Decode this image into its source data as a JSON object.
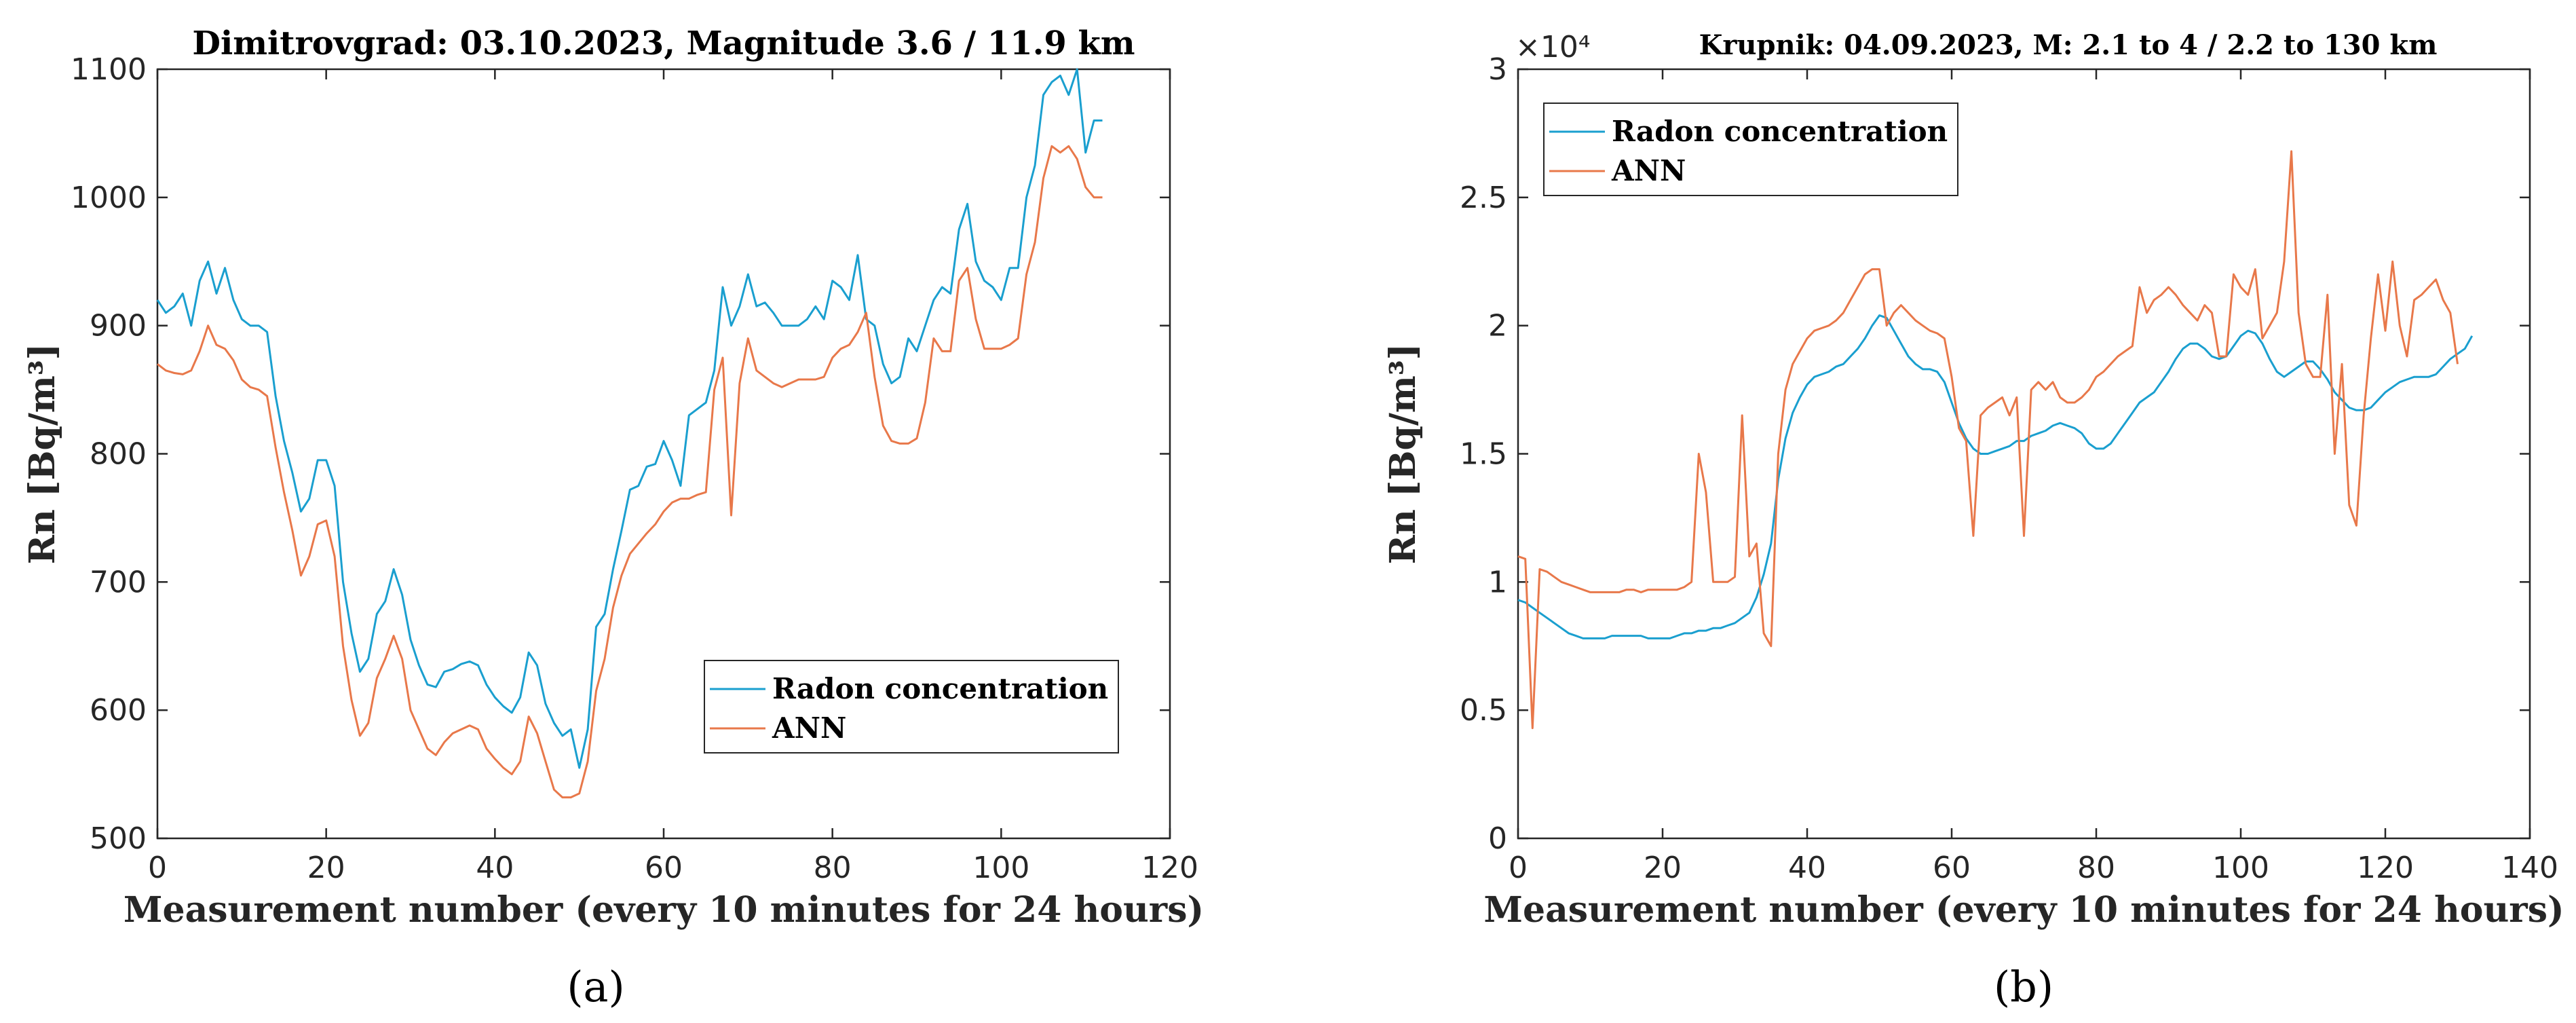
{
  "chart_data": [
    {
      "type": "line",
      "panel_label": "(a)",
      "title": "Dimitrovgrad: 03.10.2023, Magnitude 3.6 / 11.9 km",
      "xlabel": "Measurement number (every 10 minutes for 24 hours)",
      "ylabel": "Rn [Bq/m³]",
      "xlim": [
        0,
        120
      ],
      "ylim": [
        500,
        1100
      ],
      "xticks": [
        0,
        20,
        40,
        60,
        80,
        100,
        120
      ],
      "yticks": [
        500,
        600,
        700,
        800,
        900,
        1000,
        1100
      ],
      "tick_labels_x": [
        "0",
        "20",
        "40",
        "60",
        "80",
        "100",
        "120"
      ],
      "tick_labels_y": [
        "500",
        "600",
        "700",
        "800",
        "900",
        "1000",
        "1100"
      ],
      "legend": {
        "placement": "bottom-right",
        "entries": [
          "Radon concentration",
          "ANN"
        ]
      },
      "grid": false,
      "series": [
        {
          "name": "Radon concentration",
          "color": "#1a9fcf",
          "y": [
            920,
            910,
            915,
            925,
            900,
            935,
            950,
            925,
            945,
            920,
            905,
            900,
            900,
            895,
            845,
            810,
            785,
            755,
            765,
            795,
            795,
            775,
            700,
            660,
            630,
            640,
            675,
            685,
            710,
            690,
            655,
            635,
            620,
            618,
            630,
            632,
            636,
            638,
            635,
            620,
            610,
            603,
            598,
            610,
            645,
            635,
            605,
            590,
            580,
            585,
            555,
            585,
            665,
            675,
            710,
            740,
            772,
            775,
            790,
            792,
            810,
            795,
            775,
            830,
            835,
            840,
            865,
            930,
            900,
            915,
            940,
            915,
            918,
            910,
            900,
            900,
            900,
            905,
            915,
            905,
            935,
            930,
            920,
            955,
            905,
            900,
            870,
            855,
            860,
            890,
            880,
            900,
            920,
            930,
            925,
            975,
            995,
            950,
            935,
            930,
            920,
            945,
            945,
            1000,
            1025,
            1080,
            1090,
            1095,
            1080,
            1100,
            1035,
            1060,
            1060
          ]
        },
        {
          "name": "ANN",
          "color": "#e8784a",
          "y": [
            870,
            865,
            863,
            862,
            865,
            880,
            900,
            885,
            882,
            873,
            858,
            852,
            850,
            845,
            805,
            770,
            740,
            705,
            720,
            745,
            748,
            720,
            650,
            608,
            580,
            590,
            625,
            640,
            658,
            640,
            600,
            585,
            570,
            565,
            575,
            582,
            585,
            588,
            585,
            570,
            562,
            555,
            550,
            560,
            595,
            582,
            560,
            538,
            532,
            532,
            535,
            560,
            615,
            640,
            680,
            705,
            722,
            730,
            738,
            745,
            755,
            762,
            765,
            765,
            768,
            770,
            850,
            875,
            752,
            855,
            890,
            865,
            860,
            855,
            852,
            855,
            858,
            858,
            858,
            860,
            875,
            882,
            885,
            895,
            910,
            860,
            822,
            810,
            808,
            808,
            812,
            840,
            890,
            880,
            880,
            935,
            945,
            905,
            882,
            882,
            882,
            885,
            890,
            940,
            965,
            1015,
            1040,
            1035,
            1040,
            1030,
            1008,
            1000,
            1000
          ]
        }
      ]
    },
    {
      "type": "line",
      "panel_label": "(b)",
      "title": "Krupnik: 04.09.2023, M: 2.1 to 4 / 2.2 to 130 km",
      "xlabel": "Measurement number (every 10 minutes for 24 hours)",
      "ylabel": "Rn [Bq/m³]",
      "y_exponent": "×10⁴",
      "xlim": [
        0,
        140
      ],
      "ylim": [
        0,
        3
      ],
      "xticks": [
        0,
        20,
        40,
        60,
        80,
        100,
        120,
        140
      ],
      "yticks": [
        0,
        0.5,
        1,
        1.5,
        2,
        2.5,
        3
      ],
      "tick_labels_x": [
        "0",
        "20",
        "40",
        "60",
        "80",
        "100",
        "120",
        "140"
      ],
      "tick_labels_y": [
        "0",
        "0.5",
        "1",
        "1.5",
        "2",
        "2.5",
        "3"
      ],
      "legend": {
        "placement": "top-left",
        "entries": [
          "Radon concentration",
          "ANN"
        ]
      },
      "grid": false,
      "series": [
        {
          "name": "Radon concentration",
          "color": "#1a9fcf",
          "y": [
            0.93,
            0.92,
            0.9,
            0.88,
            0.86,
            0.84,
            0.82,
            0.8,
            0.79,
            0.78,
            0.78,
            0.78,
            0.78,
            0.79,
            0.79,
            0.79,
            0.79,
            0.79,
            0.78,
            0.78,
            0.78,
            0.78,
            0.79,
            0.8,
            0.8,
            0.81,
            0.81,
            0.82,
            0.82,
            0.83,
            0.84,
            0.86,
            0.88,
            0.94,
            1.03,
            1.15,
            1.4,
            1.56,
            1.66,
            1.72,
            1.77,
            1.8,
            1.81,
            1.82,
            1.84,
            1.85,
            1.88,
            1.91,
            1.95,
            2.0,
            2.04,
            2.03,
            1.98,
            1.93,
            1.88,
            1.85,
            1.83,
            1.83,
            1.82,
            1.78,
            1.7,
            1.62,
            1.56,
            1.52,
            1.5,
            1.5,
            1.51,
            1.52,
            1.53,
            1.55,
            1.55,
            1.57,
            1.58,
            1.59,
            1.61,
            1.62,
            1.61,
            1.6,
            1.58,
            1.54,
            1.52,
            1.52,
            1.54,
            1.58,
            1.62,
            1.66,
            1.7,
            1.72,
            1.74,
            1.78,
            1.82,
            1.87,
            1.91,
            1.93,
            1.93,
            1.91,
            1.88,
            1.87,
            1.88,
            1.92,
            1.96,
            1.98,
            1.97,
            1.93,
            1.87,
            1.82,
            1.8,
            1.82,
            1.84,
            1.86,
            1.86,
            1.83,
            1.79,
            1.74,
            1.71,
            1.68,
            1.67,
            1.67,
            1.68,
            1.71,
            1.74,
            1.76,
            1.78,
            1.79,
            1.8,
            1.8,
            1.8,
            1.81,
            1.84,
            1.87,
            1.89,
            1.91,
            1.96
          ]
        },
        {
          "name": "ANN",
          "color": "#e8784a",
          "y": [
            1.1,
            1.09,
            0.43,
            1.05,
            1.04,
            1.02,
            1.0,
            0.99,
            0.98,
            0.97,
            0.96,
            0.96,
            0.96,
            0.96,
            0.96,
            0.97,
            0.97,
            0.96,
            0.97,
            0.97,
            0.97,
            0.97,
            0.97,
            0.98,
            1.0,
            1.5,
            1.35,
            1.0,
            1.0,
            1.0,
            1.02,
            1.65,
            1.1,
            1.15,
            0.8,
            0.75,
            1.5,
            1.75,
            1.85,
            1.9,
            1.95,
            1.98,
            1.99,
            2.0,
            2.02,
            2.05,
            2.1,
            2.15,
            2.2,
            2.22,
            2.22,
            2.0,
            2.05,
            2.08,
            2.05,
            2.02,
            2.0,
            1.98,
            1.97,
            1.95,
            1.8,
            1.6,
            1.55,
            1.18,
            1.65,
            1.68,
            1.7,
            1.72,
            1.65,
            1.72,
            1.18,
            1.75,
            1.78,
            1.75,
            1.78,
            1.72,
            1.7,
            1.7,
            1.72,
            1.75,
            1.8,
            1.82,
            1.85,
            1.88,
            1.9,
            1.92,
            2.15,
            2.05,
            2.1,
            2.12,
            2.15,
            2.12,
            2.08,
            2.05,
            2.02,
            2.08,
            2.05,
            1.88,
            1.88,
            2.2,
            2.15,
            2.12,
            2.22,
            1.95,
            2.0,
            2.05,
            2.25,
            2.68,
            2.05,
            1.85,
            1.8,
            1.8,
            2.12,
            1.5,
            1.85,
            1.3,
            1.22,
            1.65,
            1.95,
            2.2,
            1.98,
            2.25,
            2.0,
            1.88,
            2.1,
            2.12,
            2.15,
            2.18,
            2.1,
            2.05,
            1.85
          ]
        }
      ]
    }
  ]
}
